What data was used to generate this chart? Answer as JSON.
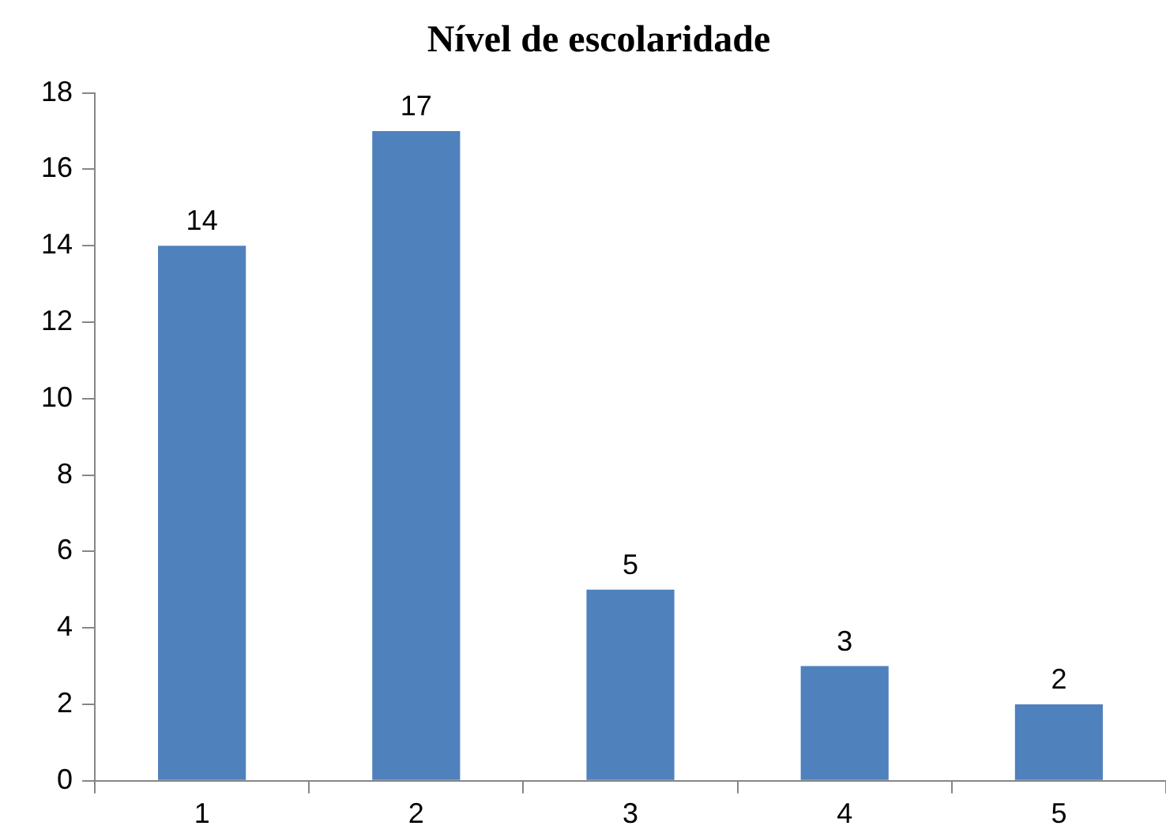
{
  "chart_data": {
    "type": "bar",
    "title": "Nível de escolaridade",
    "categories": [
      "1",
      "2",
      "3",
      "4",
      "5"
    ],
    "values": [
      14,
      17,
      5,
      3,
      2
    ],
    "color": "#4f81bd",
    "ylim": [
      0,
      18
    ],
    "yticks": [
      0,
      2,
      4,
      6,
      8,
      10,
      12,
      14,
      16,
      18
    ],
    "data_labels": true
  }
}
